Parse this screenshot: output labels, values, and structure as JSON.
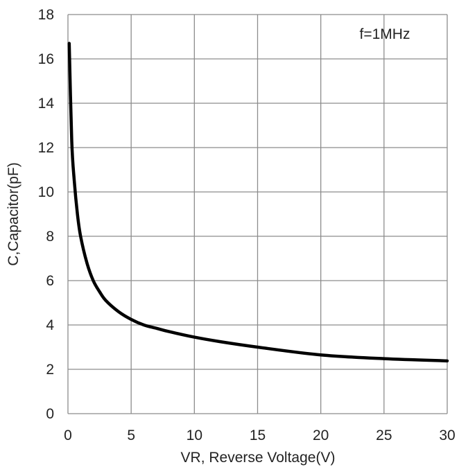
{
  "chart_data": {
    "type": "line",
    "xlabel": "VR, Reverse Voltage(V)",
    "ylabel": "C,Capacitor(pF)",
    "annotation": "f=1MHz",
    "xlim": [
      0,
      30
    ],
    "ylim": [
      0,
      18
    ],
    "xticks": [
      0,
      5,
      10,
      15,
      20,
      25,
      30
    ],
    "yticks": [
      0,
      2,
      4,
      6,
      8,
      10,
      12,
      14,
      16,
      18
    ],
    "grid": true,
    "series": [
      {
        "color": "#000000",
        "x": [
          0.1,
          0.3,
          0.5,
          0.75,
          1,
          1.5,
          2,
          2.5,
          3,
          4,
          5,
          6,
          7,
          8,
          10,
          12,
          15,
          20,
          25,
          30
        ],
        "y": [
          16.7,
          12.3,
          10.5,
          9.0,
          8.0,
          6.8,
          6.0,
          5.5,
          5.1,
          4.6,
          4.25,
          4.0,
          3.85,
          3.7,
          3.45,
          3.25,
          3.0,
          2.65,
          2.48,
          2.38
        ]
      }
    ]
  }
}
